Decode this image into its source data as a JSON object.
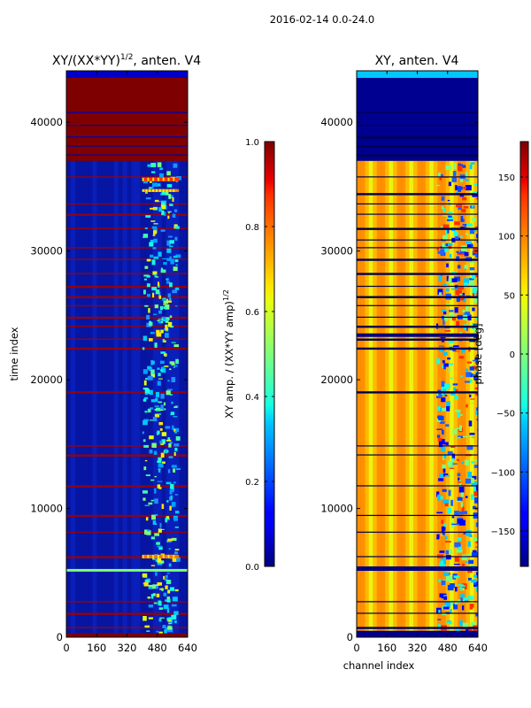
{
  "suptitle": "2016-02-14 0.0-24.0",
  "chart_data": [
    {
      "type": "heatmap",
      "title": "XY/(XX*YY)^{1/2}, anten. V4",
      "title_main": "XY/(XX*YY)",
      "title_sup": "1/2",
      "title_tail": ", anten. V4",
      "xlabel": "",
      "ylabel": "time index",
      "xlim": [
        0,
        640
      ],
      "ylim": [
        0,
        44000
      ],
      "xticks": [
        0,
        160,
        320,
        480,
        640
      ],
      "yticks": [
        0,
        10000,
        20000,
        30000,
        40000
      ],
      "colormap": "jet",
      "description": "Normalized XY cross-correlation amplitude vs channel and time; mostly low (blue) with bright bands above channel ~400 and red flagged rows near the top.",
      "colorbar": {
        "label": "XY amp. / (XX*YY amp)^{1/2}",
        "label_main": "XY amp. / (XX*YY amp)",
        "label_sup": "1/2",
        "range": [
          0.0,
          1.0
        ],
        "ticks": [
          "0.0",
          "0.2",
          "0.4",
          "0.6",
          "0.8",
          "1.0"
        ]
      }
    },
    {
      "type": "heatmap",
      "title": "XY, anten. V4",
      "xlabel": "channel index",
      "ylabel": "",
      "xlim": [
        0,
        640
      ],
      "ylim": [
        0,
        44000
      ],
      "xticks": [
        0,
        160,
        320,
        480,
        640
      ],
      "yticks": [
        0,
        10000,
        20000,
        30000,
        40000
      ],
      "colormap": "jet",
      "description": "XY phase vs channel and time; striped yellow/orange pattern with noisy blue patches above channel ~420 and dark flagged rows.",
      "colorbar": {
        "label": "phase [deg]",
        "range": [
          -180,
          180
        ],
        "ticks": [
          "−150",
          "−100",
          "−50",
          "0",
          "50",
          "100",
          "150"
        ]
      }
    }
  ],
  "colors": {
    "jet_low": "#00007f",
    "jet_high": "#7f0000",
    "frame": "#000000"
  }
}
